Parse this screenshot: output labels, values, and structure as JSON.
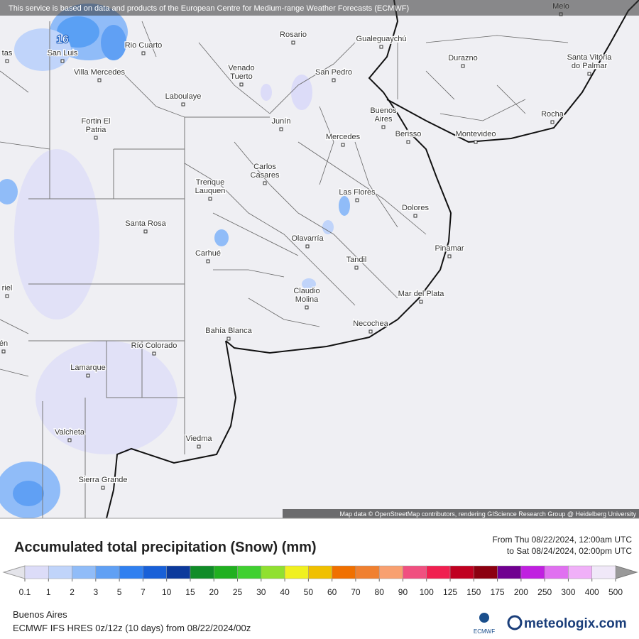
{
  "map": {
    "attribution_top": "This service is based on data and products of the European Centre for Medium-range Weather Forecasts (ECMWF)",
    "attribution_bottom": "Map data © OpenStreetMap contributors, rendering GIScience Research Group @ Heidelberg University",
    "labels": [
      [
        "Melo"
      ],
      [
        "16"
      ],
      [
        "tas"
      ],
      [
        "San Luis"
      ],
      [
        "Rio Cuarto"
      ],
      [
        "Villa Mercedes"
      ],
      [
        "Venado",
        "Tuerto"
      ],
      [
        "Laboulaye"
      ],
      [
        "Rosario"
      ],
      [
        "San Pedro"
      ],
      [
        "Gualeguaychú"
      ],
      [
        "Durazno"
      ],
      [
        "Santa Vitória",
        "do Palmar"
      ],
      [
        "Rocha"
      ],
      [
        "Buenos",
        "Aires"
      ],
      [
        "Berisso"
      ],
      [
        "Montevideo"
      ],
      [
        "Junín"
      ],
      [
        "Mercedes"
      ],
      [
        "Fortin El",
        "Patria"
      ],
      [
        "Carlos",
        "Casares"
      ],
      [
        "Trenque",
        "Lauquen"
      ],
      [
        "Las Flores"
      ],
      [
        "Dolores"
      ],
      [
        "Santa Rosa"
      ],
      [
        "Olavarría"
      ],
      [
        "Pinamar"
      ],
      [
        "Carhué"
      ],
      [
        "Tandil"
      ],
      [
        "riel"
      ],
      [
        "Claudio",
        "Molina"
      ],
      [
        "Mar del Plata"
      ],
      [
        "Necochea"
      ],
      [
        "Bahía Blanca"
      ],
      [
        "én"
      ],
      [
        "Río Colorado"
      ],
      [
        "Lamarque"
      ],
      [
        "Valcheta"
      ],
      [
        "Viedma"
      ],
      [
        "Sierra Grande"
      ]
    ]
  },
  "legend": {
    "title": "Accumulated total precipitation (Snow) (mm)",
    "period": [
      "From Thu 08/22/2024, 12:00am UTC",
      "to Sat 08/24/2024, 02:00pm UTC"
    ],
    "ticks": [
      0.1,
      1,
      2,
      3,
      5,
      7,
      10,
      15,
      20,
      25,
      30,
      40,
      50,
      60,
      70,
      80,
      90,
      100,
      125,
      150,
      175,
      200,
      250,
      300,
      400,
      500
    ],
    "colors": [
      "#dcdcf8",
      "#c0d4fa",
      "#90bcf8",
      "#60a0f4",
      "#3080f0",
      "#1860d8",
      "#0c3a9c",
      "#108c28",
      "#20b020",
      "#40d030",
      "#90e030",
      "#f0f020",
      "#f0c000",
      "#f07000",
      "#f08030",
      "#f8a070",
      "#f05080",
      "#f02050",
      "#c00020",
      "#8c0010",
      "#700090",
      "#c020e0",
      "#e070f0",
      "#f0b0f8",
      "#f0e8f8"
    ]
  },
  "footer": {
    "location": "Buenos Aires",
    "model": "ECMWF IFS HRES 0z/12z (10 days) from 08/22/2024/00z",
    "ecmwf_logo": "ECMWF",
    "brand": "meteologix.com"
  }
}
